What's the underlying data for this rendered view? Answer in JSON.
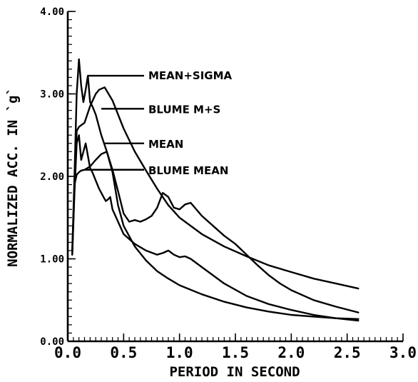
{
  "chart_data": {
    "type": "line",
    "title": "",
    "xlabel": "PERIOD IN SECOND",
    "ylabel": "NORMALIZED ACC. IN `g`",
    "xlim": [
      0.0,
      3.0
    ],
    "ylim": [
      0.0,
      4.0
    ],
    "xticks": [
      0.0,
      0.5,
      1.0,
      1.5,
      2.0,
      2.5,
      3.0
    ],
    "xtick_labels": [
      "0.0",
      "0.5",
      "1.0",
      "1.5",
      "2.0",
      "2.5",
      "3.0"
    ],
    "yticks": [
      0.0,
      1.0,
      2.0,
      3.0,
      4.0
    ],
    "ytick_labels": [
      "0.00",
      "1.00",
      "2.00",
      "3.00",
      "4.00"
    ],
    "grid": false,
    "legend": "inline-annotations",
    "series": [
      {
        "name": "MEAN+SIGMA",
        "label_at": [
          0.18,
          3.22
        ],
        "x": [
          0.04,
          0.06,
          0.08,
          0.1,
          0.12,
          0.14,
          0.16,
          0.18,
          0.2,
          0.22,
          0.25,
          0.3,
          0.35,
          0.4,
          0.45,
          0.5,
          0.55,
          0.6,
          0.65,
          0.7,
          0.75,
          0.8,
          0.85,
          0.9,
          0.95,
          1.0,
          1.05,
          1.1,
          1.2,
          1.3,
          1.4,
          1.5,
          1.6,
          1.7,
          1.8,
          1.9,
          2.0,
          2.2,
          2.4,
          2.6
        ],
        "y": [
          1.1,
          2.0,
          3.0,
          3.42,
          3.1,
          2.9,
          3.05,
          3.22,
          2.9,
          2.85,
          2.75,
          2.5,
          2.3,
          2.08,
          1.82,
          1.55,
          1.45,
          1.47,
          1.45,
          1.48,
          1.52,
          1.62,
          1.8,
          1.75,
          1.62,
          1.6,
          1.66,
          1.68,
          1.52,
          1.4,
          1.28,
          1.18,
          1.05,
          0.92,
          0.8,
          0.7,
          0.62,
          0.5,
          0.42,
          0.35
        ]
      },
      {
        "name": "BLUME M+S",
        "label_at": [
          0.3,
          2.82
        ],
        "x": [
          0.04,
          0.06,
          0.08,
          0.1,
          0.15,
          0.2,
          0.25,
          0.28,
          0.33,
          0.4,
          0.5,
          0.6,
          0.7,
          0.8,
          0.9,
          1.0,
          1.2,
          1.4,
          1.6,
          1.8,
          2.0,
          2.2,
          2.4,
          2.6
        ],
        "y": [
          1.1,
          1.85,
          2.55,
          2.6,
          2.65,
          2.85,
          3.0,
          3.05,
          3.08,
          2.92,
          2.58,
          2.3,
          2.07,
          1.85,
          1.65,
          1.5,
          1.3,
          1.15,
          1.03,
          0.92,
          0.84,
          0.76,
          0.7,
          0.64
        ]
      },
      {
        "name": "MEAN",
        "label_at": [
          0.33,
          2.4
        ],
        "x": [
          0.04,
          0.06,
          0.08,
          0.1,
          0.12,
          0.14,
          0.16,
          0.18,
          0.2,
          0.22,
          0.25,
          0.28,
          0.3,
          0.32,
          0.34,
          0.36,
          0.38,
          0.4,
          0.45,
          0.5,
          0.6,
          0.7,
          0.8,
          0.85,
          0.9,
          0.95,
          1.0,
          1.05,
          1.1,
          1.2,
          1.4,
          1.6,
          1.8,
          2.0,
          2.2,
          2.4,
          2.6
        ],
        "y": [
          1.05,
          1.8,
          2.4,
          2.5,
          2.2,
          2.3,
          2.4,
          2.25,
          2.1,
          2.05,
          1.95,
          1.85,
          1.8,
          1.75,
          1.7,
          1.72,
          1.75,
          1.6,
          1.45,
          1.3,
          1.18,
          1.1,
          1.05,
          1.07,
          1.1,
          1.05,
          1.02,
          1.03,
          1.0,
          0.9,
          0.7,
          0.55,
          0.45,
          0.38,
          0.32,
          0.28,
          0.25
        ]
      },
      {
        "name": "BLUME MEAN",
        "label_at": [
          0.15,
          2.08
        ],
        "x": [
          0.04,
          0.06,
          0.08,
          0.1,
          0.12,
          0.15,
          0.2,
          0.25,
          0.3,
          0.35,
          0.4,
          0.45,
          0.5,
          0.6,
          0.7,
          0.8,
          0.9,
          1.0,
          1.2,
          1.4,
          1.6,
          1.8,
          2.0,
          2.2,
          2.4,
          2.6
        ],
        "y": [
          1.05,
          1.9,
          2.02,
          2.05,
          2.07,
          2.08,
          2.12,
          2.2,
          2.27,
          2.3,
          2.05,
          1.65,
          1.4,
          1.15,
          0.98,
          0.85,
          0.76,
          0.68,
          0.57,
          0.48,
          0.41,
          0.36,
          0.32,
          0.3,
          0.28,
          0.27
        ]
      }
    ]
  }
}
